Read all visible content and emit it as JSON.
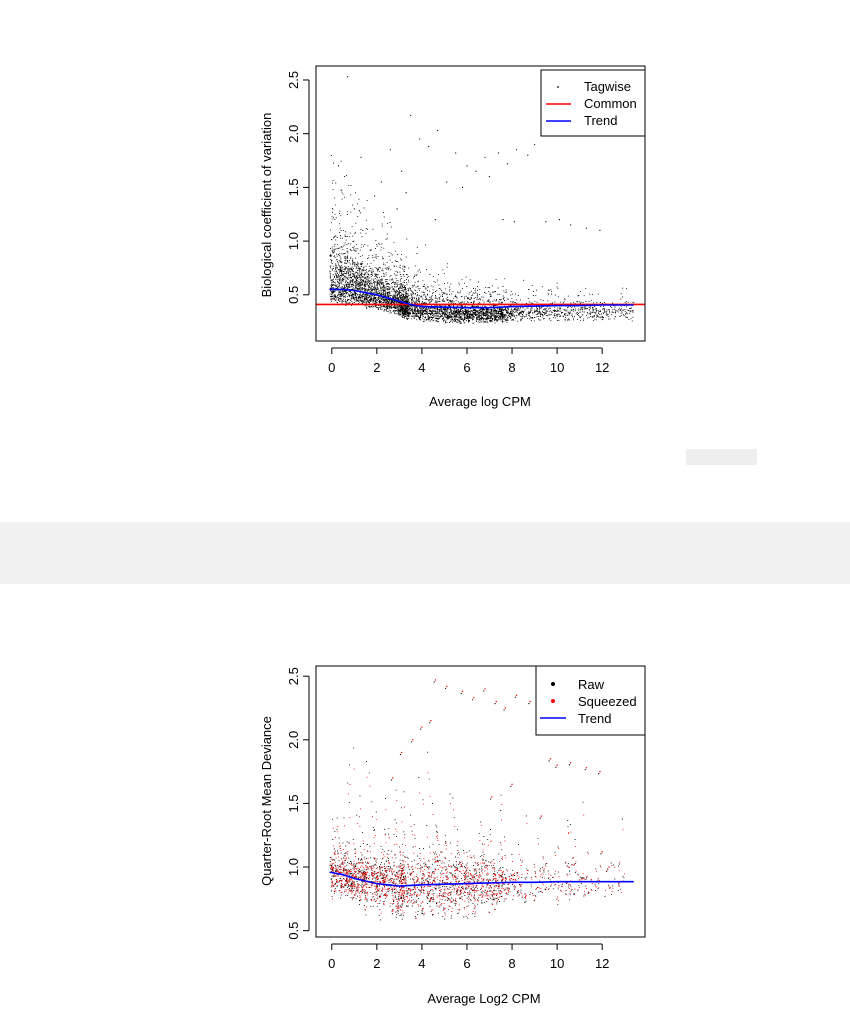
{
  "chart_data": [
    {
      "type": "scatter",
      "xlabel": "Average log CPM",
      "ylabel": "Biological coefficient of variation",
      "xlim": [
        -0.7,
        13.9
      ],
      "ylim": [
        0.07,
        2.63
      ],
      "xticks": [
        0,
        2,
        4,
        6,
        8,
        10,
        12
      ],
      "yticks": [
        0.5,
        1.0,
        1.5,
        2.0,
        2.5
      ],
      "ytick_labels": [
        "0.5",
        "1.0",
        "1.5",
        "2.0",
        "2.5"
      ],
      "legend_position": "top-right",
      "legend": [
        {
          "label": "Tagwise",
          "kind": "point",
          "color": "#000000"
        },
        {
          "label": "Common",
          "kind": "line",
          "color": "#ff0000"
        },
        {
          "label": "Trend",
          "kind": "line",
          "color": "#0000ff"
        }
      ],
      "common_bcv": 0.41,
      "trend": {
        "x": [
          -0.1,
          0.5,
          1.0,
          1.5,
          2.0,
          2.5,
          3.0,
          3.5,
          4.0,
          5.0,
          6.0,
          7.0,
          8.0,
          9.0,
          10.0,
          11.0,
          12.0,
          13.4
        ],
        "y": [
          0.55,
          0.55,
          0.54,
          0.52,
          0.5,
          0.47,
          0.44,
          0.41,
          0.39,
          0.385,
          0.38,
          0.38,
          0.39,
          0.395,
          0.4,
          0.4,
          0.405,
          0.405
        ]
      },
      "outliers": {
        "x": [
          0.7,
          1.3,
          1.9,
          2.6,
          3.1,
          3.5,
          3.9,
          4.3,
          4.7,
          5.1,
          5.5,
          6.0,
          6.4,
          6.8,
          7.4,
          7.8,
          8.2,
          8.7,
          9.0,
          1.0,
          2.2,
          3.3,
          5.8,
          7.0,
          7.6,
          8.1,
          9.5,
          10.1,
          10.6,
          11.3,
          11.9,
          2.9,
          4.6,
          0.3
        ],
        "y": [
          2.53,
          1.78,
          1.42,
          1.85,
          1.65,
          2.17,
          1.95,
          1.88,
          2.03,
          1.55,
          1.82,
          1.7,
          1.65,
          1.78,
          1.82,
          1.72,
          1.85,
          1.8,
          1.9,
          1.3,
          1.55,
          1.45,
          1.5,
          1.6,
          1.2,
          1.18,
          1.18,
          1.2,
          1.15,
          1.12,
          1.1,
          1.3,
          1.2,
          1.7
        ]
      }
    },
    {
      "type": "scatter",
      "xlabel": "Average Log2 CPM",
      "ylabel": "Quarter-Root Mean Deviance",
      "xlim": [
        -0.7,
        13.9
      ],
      "ylim": [
        0.45,
        2.58
      ],
      "xticks": [
        0,
        2,
        4,
        6,
        8,
        10,
        12
      ],
      "yticks": [
        0.5,
        1.0,
        1.5,
        2.0,
        2.5
      ],
      "ytick_labels": [
        "0.5",
        "1.0",
        "1.5",
        "2.0",
        "2.5"
      ],
      "legend_position": "top-right",
      "legend": [
        {
          "label": "Raw",
          "kind": "point",
          "color": "#000000"
        },
        {
          "label": "Squeezed",
          "kind": "point",
          "color": "#ff0000"
        },
        {
          "label": "Trend",
          "kind": "line",
          "color": "#0000ff"
        }
      ],
      "trend": {
        "x": [
          -0.1,
          0.5,
          1.0,
          2.0,
          3.0,
          4.0,
          5.0,
          6.0,
          7.0,
          8.0,
          9.0,
          10.0,
          11.0,
          12.0,
          13.4
        ],
        "y": [
          0.96,
          0.94,
          0.91,
          0.87,
          0.85,
          0.86,
          0.865,
          0.87,
          0.875,
          0.88,
          0.88,
          0.885,
          0.885,
          0.885,
          0.885
        ]
      },
      "outliers": {
        "x": [
          4.6,
          5.1,
          5.8,
          6.3,
          6.8,
          7.3,
          7.7,
          8.2,
          8.8,
          9.2,
          9.7,
          10.0,
          10.6,
          11.3,
          11.9,
          4.0,
          4.4,
          3.6,
          3.1,
          2.7,
          12.0,
          12.3,
          9.3,
          8.0,
          7.1
        ],
        "y": [
          2.47,
          2.42,
          2.38,
          2.33,
          2.4,
          2.3,
          2.25,
          2.35,
          2.3,
          2.35,
          1.85,
          1.8,
          1.82,
          1.78,
          1.75,
          2.1,
          2.15,
          2.0,
          1.9,
          1.7,
          1.12,
          1.0,
          1.4,
          1.65,
          1.55
        ]
      }
    }
  ]
}
